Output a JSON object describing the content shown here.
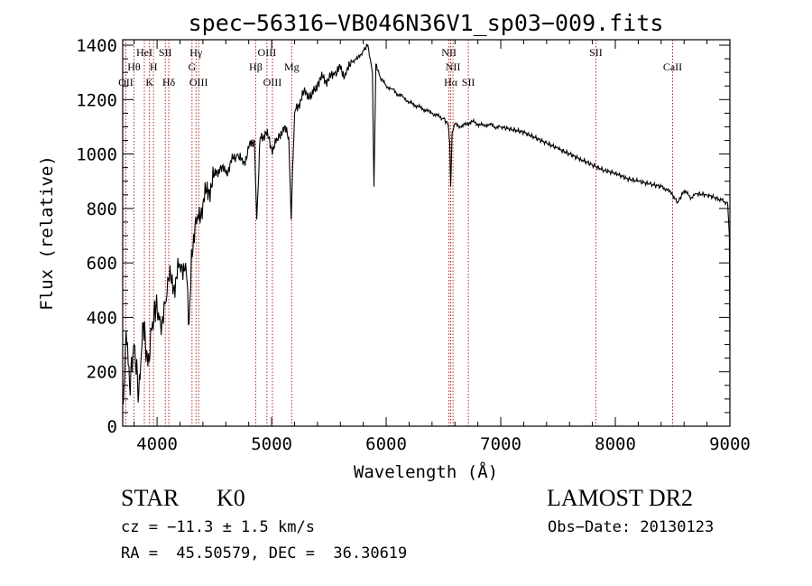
{
  "chart_data": {
    "type": "line",
    "title": "spec−56316−VB046N36V1_sp03−009.fits",
    "xlabel": "Wavelength (Å)",
    "ylabel": "Flux (relative)",
    "xlim": [
      3700,
      9000
    ],
    "ylim": [
      0,
      1420
    ],
    "x_ticks": [
      4000,
      5000,
      6000,
      7000,
      8000,
      9000
    ],
    "y_ticks": [
      0,
      200,
      400,
      600,
      800,
      1000,
      1200,
      1400
    ],
    "x_minor_step": 200,
    "y_minor_step": 50,
    "grid": false,
    "series": [
      {
        "color": "#000000",
        "x": [
          3705,
          3730,
          3760,
          3800,
          3840,
          3880,
          3920,
          3950,
          3990,
          4030,
          4080,
          4100,
          4150,
          4200,
          4250,
          4280,
          4300,
          4350,
          4400,
          4450,
          4500,
          4550,
          4600,
          4650,
          4700,
          4750,
          4800,
          4850,
          4870,
          4900,
          4950,
          5000,
          5050,
          5100,
          5150,
          5170,
          5183,
          5200,
          5250,
          5300,
          5350,
          5400,
          5450,
          5500,
          5550,
          5600,
          5650,
          5700,
          5750,
          5800,
          5840,
          5860,
          5880,
          5893,
          5910,
          5950,
          6000,
          6050,
          6100,
          6150,
          6200,
          6250,
          6300,
          6350,
          6400,
          6450,
          6500,
          6540,
          6555,
          6563,
          6575,
          6600,
          6650,
          6700,
          6750,
          6800,
          6850,
          6900,
          6950,
          7000,
          7100,
          7200,
          7300,
          7400,
          7500,
          7600,
          7700,
          7800,
          7900,
          8000,
          8100,
          8200,
          8300,
          8400,
          8450,
          8500,
          8542,
          8600,
          8662,
          8700,
          8800,
          8900,
          8980,
          8995,
          9000
        ],
        "y": [
          80,
          350,
          150,
          300,
          120,
          380,
          220,
          350,
          440,
          380,
          460,
          540,
          520,
          590,
          600,
          380,
          650,
          760,
          820,
          870,
          920,
          950,
          930,
          970,
          1000,
          960,
          1020,
          1050,
          760,
          1060,
          1080,
          1020,
          1050,
          1100,
          1060,
          760,
          950,
          1150,
          1200,
          1230,
          1210,
          1260,
          1280,
          1270,
          1300,
          1310,
          1290,
          1340,
          1350,
          1380,
          1400,
          1350,
          1300,
          880,
          1330,
          1280,
          1250,
          1240,
          1220,
          1210,
          1190,
          1180,
          1170,
          1160,
          1150,
          1140,
          1130,
          1110,
          1040,
          880,
          1080,
          1110,
          1100,
          1110,
          1120,
          1110,
          1105,
          1110,
          1100,
          1100,
          1090,
          1080,
          1060,
          1040,
          1020,
          1000,
          980,
          960,
          940,
          930,
          910,
          900,
          890,
          880,
          870,
          850,
          820,
          865,
          840,
          855,
          850,
          835,
          820,
          700,
          280
        ]
      }
    ],
    "spectral_lines": [
      {
        "label": "OII",
        "wavelength": 3727,
        "row": 3
      },
      {
        "label": "Hθ",
        "wavelength": 3798,
        "row": 2
      },
      {
        "label": "HeI",
        "wavelength": 3889,
        "row": 1
      },
      {
        "label": "K",
        "wavelength": 3934,
        "row": 3
      },
      {
        "label": "H",
        "wavelength": 3969,
        "row": 2
      },
      {
        "label": "SII",
        "wavelength": 4072,
        "row": 1
      },
      {
        "label": "Hδ",
        "wavelength": 4102,
        "row": 3
      },
      {
        "label": "Hγ",
        "wavelength": 4340,
        "row": 1
      },
      {
        "label": "G",
        "wavelength": 4305,
        "row": 2
      },
      {
        "label": "OIII",
        "wavelength": 4363,
        "row": 3
      },
      {
        "label": "Hβ",
        "wavelength": 4861,
        "row": 2
      },
      {
        "label": "OIII",
        "wavelength": 4959,
        "row": 1
      },
      {
        "label": "OIII",
        "wavelength": 5007,
        "row": 3
      },
      {
        "label": "Mg",
        "wavelength": 5175,
        "row": 2
      },
      {
        "label": "NII",
        "wavelength": 6548,
        "row": 1
      },
      {
        "label": "NII",
        "wavelength": 6583,
        "row": 2
      },
      {
        "label": "Hα",
        "wavelength": 6563,
        "row": 3
      },
      {
        "label": "SII",
        "wavelength": 6717,
        "row": 3
      },
      {
        "label": "SII",
        "wavelength": 7830,
        "row": 1
      },
      {
        "label": "CaII",
        "wavelength": 8500,
        "row": 2
      }
    ],
    "line_color": "#b22222"
  },
  "info": {
    "object_class": "STAR",
    "subclass": "K0",
    "survey": "LAMOST DR2",
    "redshift": "cz = −11.3 ± 1.5 km/s",
    "obs_date": "Obs−Date: 20130123",
    "coords": "RA =  45.50579, DEC =  36.30619"
  }
}
